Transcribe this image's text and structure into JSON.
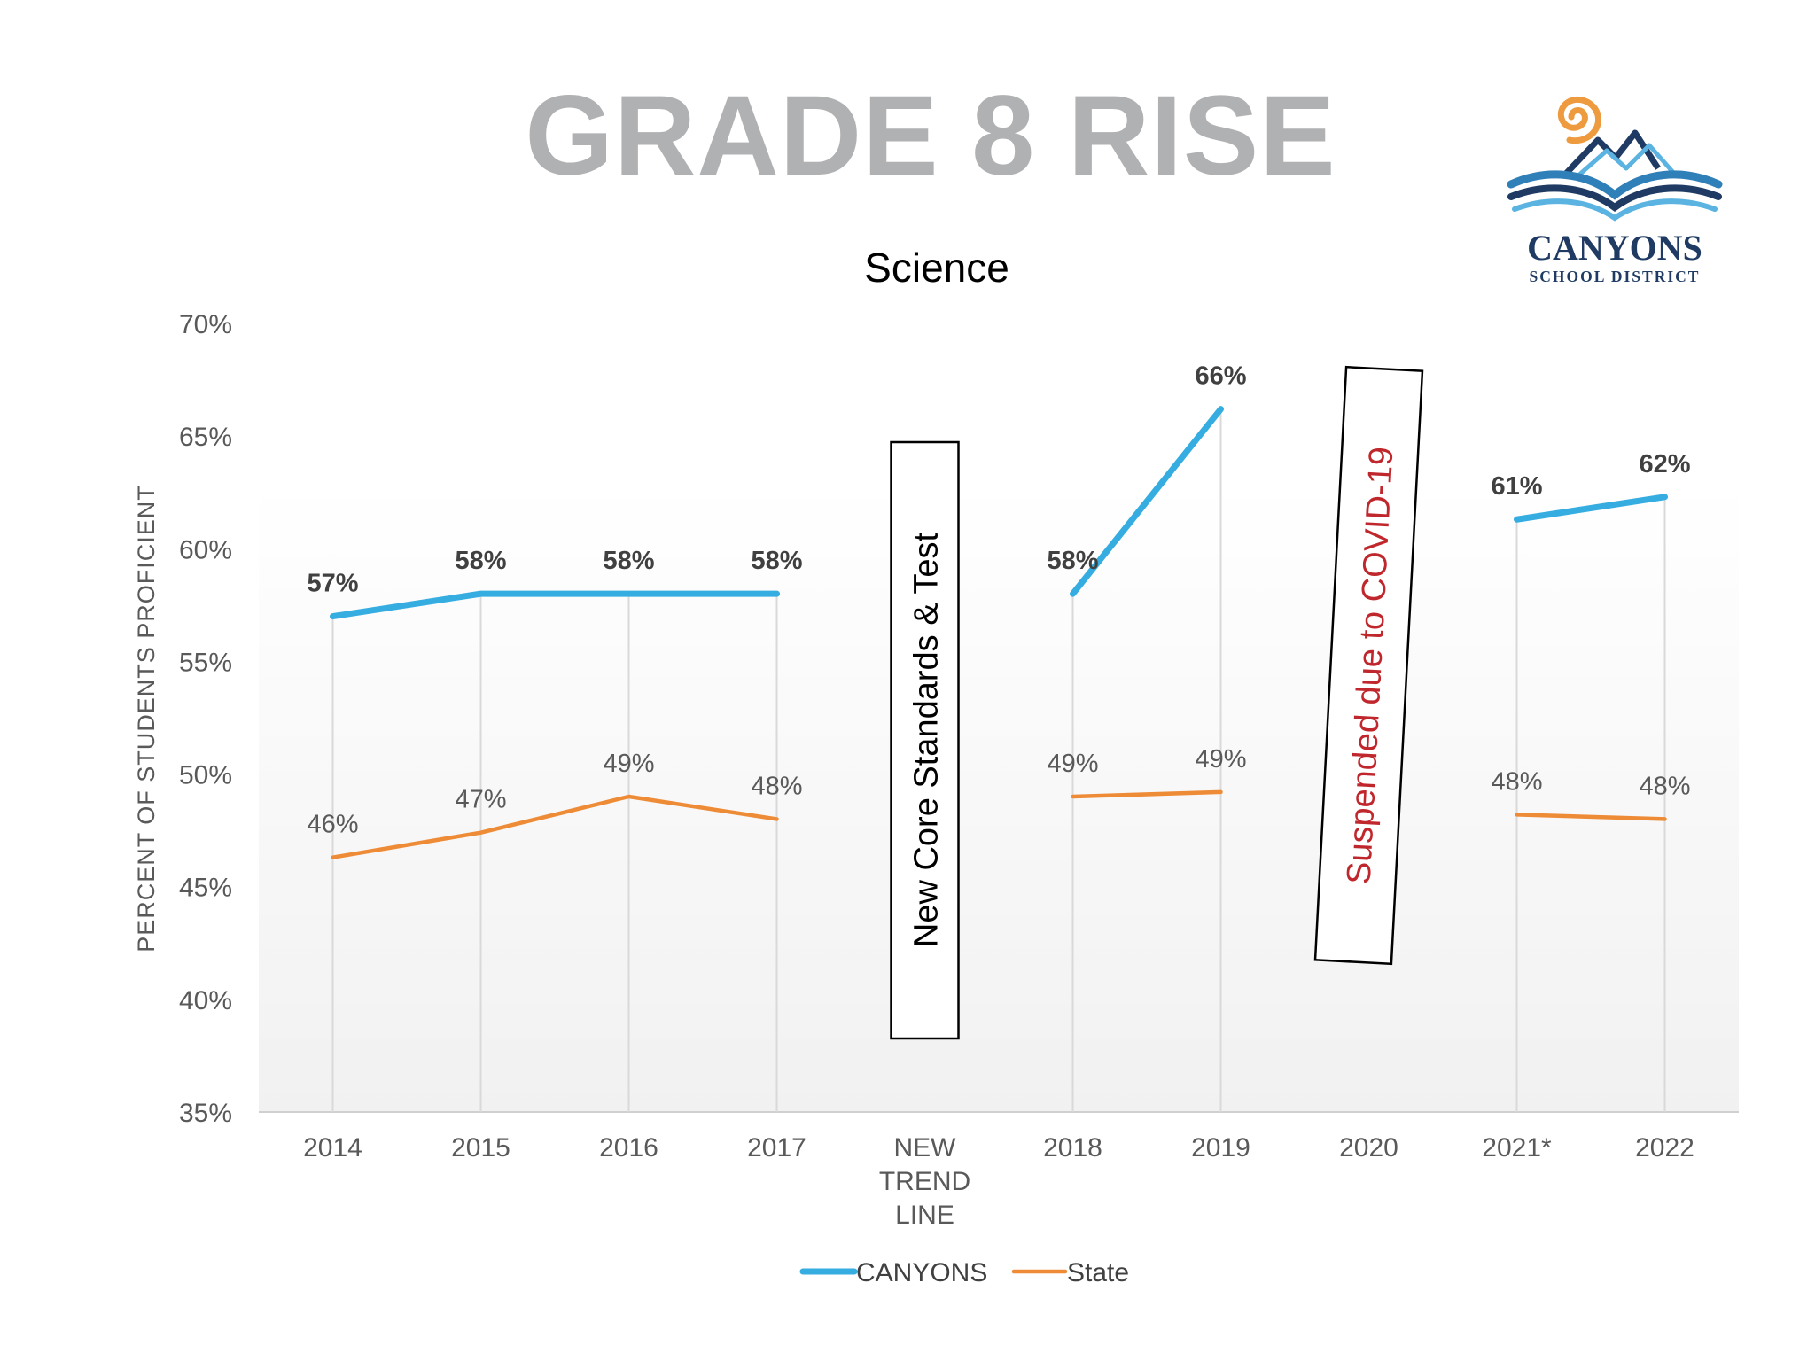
{
  "page": {
    "title": "GRADE 8 RISE"
  },
  "logo": {
    "name": "CANYONS",
    "subtitle": "SCHOOL DISTRICT",
    "colors": {
      "orange": "#ee9a3e",
      "blue": "#2f7fb8",
      "navy": "#1f3b63",
      "sky": "#5ab3e0"
    }
  },
  "chart_data": {
    "type": "line",
    "title": "Science",
    "xlabel": "",
    "ylabel": "PERCENT OF STUDENTS PROFICIENT",
    "ylim": [
      35,
      70
    ],
    "ytick_step": 5,
    "y_tick_labels": [
      "35%",
      "40%",
      "45%",
      "50%",
      "55%",
      "60%",
      "65%",
      "70%"
    ],
    "categories": [
      "2014",
      "2015",
      "2016",
      "2017",
      "NEW\nTREND\nLINE",
      "2018",
      "2019",
      "2020",
      "2021*",
      "2022"
    ],
    "legend_position": "bottom",
    "series": [
      {
        "name": "CANYONS",
        "color": "#35ade0",
        "values": [
          57,
          58,
          58,
          58,
          null,
          58,
          66.2,
          null,
          61.3,
          62.3
        ],
        "labels": [
          "57%",
          "58%",
          "58%",
          "58%",
          null,
          "58%",
          "66%",
          null,
          "61%",
          "62%"
        ]
      },
      {
        "name": "State",
        "color": "#ee8b36",
        "values": [
          46.3,
          47.4,
          49,
          48,
          null,
          49,
          49.2,
          null,
          48.2,
          48
        ],
        "labels": [
          "46%",
          "47%",
          "49%",
          "48%",
          null,
          "49%",
          "49%",
          null,
          "48%",
          "48%"
        ]
      }
    ],
    "annotations": [
      {
        "text": "New Core Standards & Test",
        "category_index": 4,
        "color": "#000000"
      },
      {
        "text": "Suspended due to COVID-19",
        "category_index": 7,
        "color": "#c0272d"
      }
    ]
  }
}
